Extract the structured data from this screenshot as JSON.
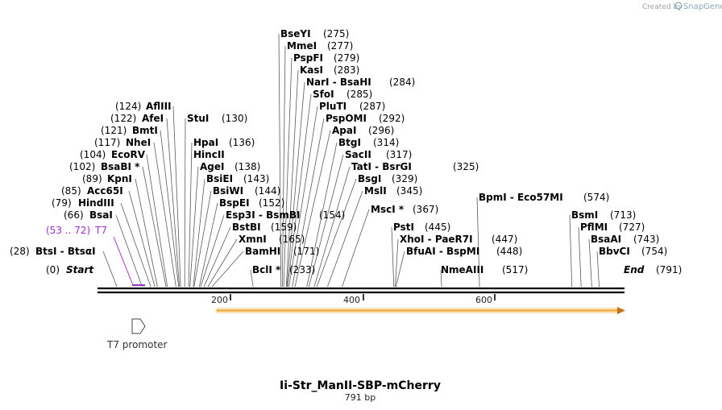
{
  "credit": {
    "prefix": "Created by",
    "brand": "SnapGene"
  },
  "title": "Ii-Str_ManII-SBP-mCherry",
  "length_label": "791 bp",
  "sequence_length": 791,
  "ruler_ticks": [
    "200",
    "400",
    "600"
  ],
  "ends": {
    "start": {
      "name": "Start",
      "pos": "(0)"
    },
    "end": {
      "name": "End",
      "pos": "(791)"
    }
  },
  "colors": {
    "backbone": "#000000",
    "primer": "#9b30c8",
    "orf": "#f2a030",
    "label": "#000000"
  },
  "left_sites": [
    {
      "name": "AflIII",
      "pos": "(124)"
    },
    {
      "name": "AfeI",
      "pos": "(122)"
    },
    {
      "name": "BmtI",
      "pos": "(121)"
    },
    {
      "name": "NheI",
      "pos": "(117)"
    },
    {
      "name": "EcoRV",
      "pos": "(104)"
    },
    {
      "name": "BsaBI *",
      "pos": "(102)"
    },
    {
      "name": "KpnI",
      "pos": "(89)"
    },
    {
      "name": "Acc65I",
      "pos": "(85)"
    },
    {
      "name": "HindIII",
      "pos": "(79)"
    },
    {
      "name": "BsaI",
      "pos": "(66)"
    },
    {
      "name": "BtsI  -  BtsαI",
      "pos": "(28)"
    }
  ],
  "mid_sites": [
    {
      "name": "StuI",
      "pos": "(130)"
    },
    {
      "name": "HpaI",
      "pos": "(136)"
    },
    {
      "name": "HincII",
      "pos": ""
    },
    {
      "name": "AgeI",
      "pos": "(138)"
    },
    {
      "name": "BsiEI",
      "pos": "(143)"
    },
    {
      "name": "BsiWI",
      "pos": "(144)"
    },
    {
      "name": "BspEI",
      "pos": "(152)"
    },
    {
      "name": "Esp3I  -  BsmBI",
      "pos": "(154)"
    },
    {
      "name": "BstBI",
      "pos": "(159)"
    },
    {
      "name": "XmnI",
      "pos": "(165)"
    },
    {
      "name": "BamHI",
      "pos": "(171)"
    },
    {
      "name": "BclI *",
      "pos": "(233)"
    }
  ],
  "top_sites": [
    {
      "name": "BseYI",
      "pos": "(275)"
    },
    {
      "name": "MmeI",
      "pos": "(277)"
    },
    {
      "name": "PspFI",
      "pos": "(279)"
    },
    {
      "name": "KasI",
      "pos": "(283)"
    },
    {
      "name": "NarI  -  BsaHI",
      "pos": "(284)"
    },
    {
      "name": "SfoI",
      "pos": "(285)"
    },
    {
      "name": "PluTI",
      "pos": "(287)"
    },
    {
      "name": "PspOMI",
      "pos": "(292)"
    },
    {
      "name": "ApaI",
      "pos": "(296)"
    },
    {
      "name": "BtgI",
      "pos": "(314)"
    },
    {
      "name": "SacII",
      "pos": "(317)"
    },
    {
      "name": "TatI  -  BsrGI",
      "pos": "(325)"
    },
    {
      "name": "BsgI",
      "pos": "(329)"
    },
    {
      "name": "MslI",
      "pos": "(345)"
    },
    {
      "name": "MscI *",
      "pos": "(367)"
    }
  ],
  "pst_sites": [
    {
      "name": "PstI",
      "pos": "(445)"
    },
    {
      "name": "XhoI  -  PaeR7I",
      "pos": "(447)"
    },
    {
      "name": "BfuAI  -  BspMI",
      "pos": "(448)"
    }
  ],
  "other_sites": [
    {
      "name": "NmeAIII",
      "pos": "(517)"
    },
    {
      "name": "BpmI  -  Eco57MI",
      "pos": "(574)"
    }
  ],
  "right_sites": [
    {
      "name": "BsmI",
      "pos": "(713)"
    },
    {
      "name": "PflMI",
      "pos": "(727)"
    },
    {
      "name": "BsaAI",
      "pos": "(743)"
    },
    {
      "name": "BbvCI",
      "pos": "(754)"
    }
  ],
  "primer": {
    "range": "(53 .. 72)",
    "name": "T7"
  },
  "feature": {
    "name": "T7 promoter"
  }
}
